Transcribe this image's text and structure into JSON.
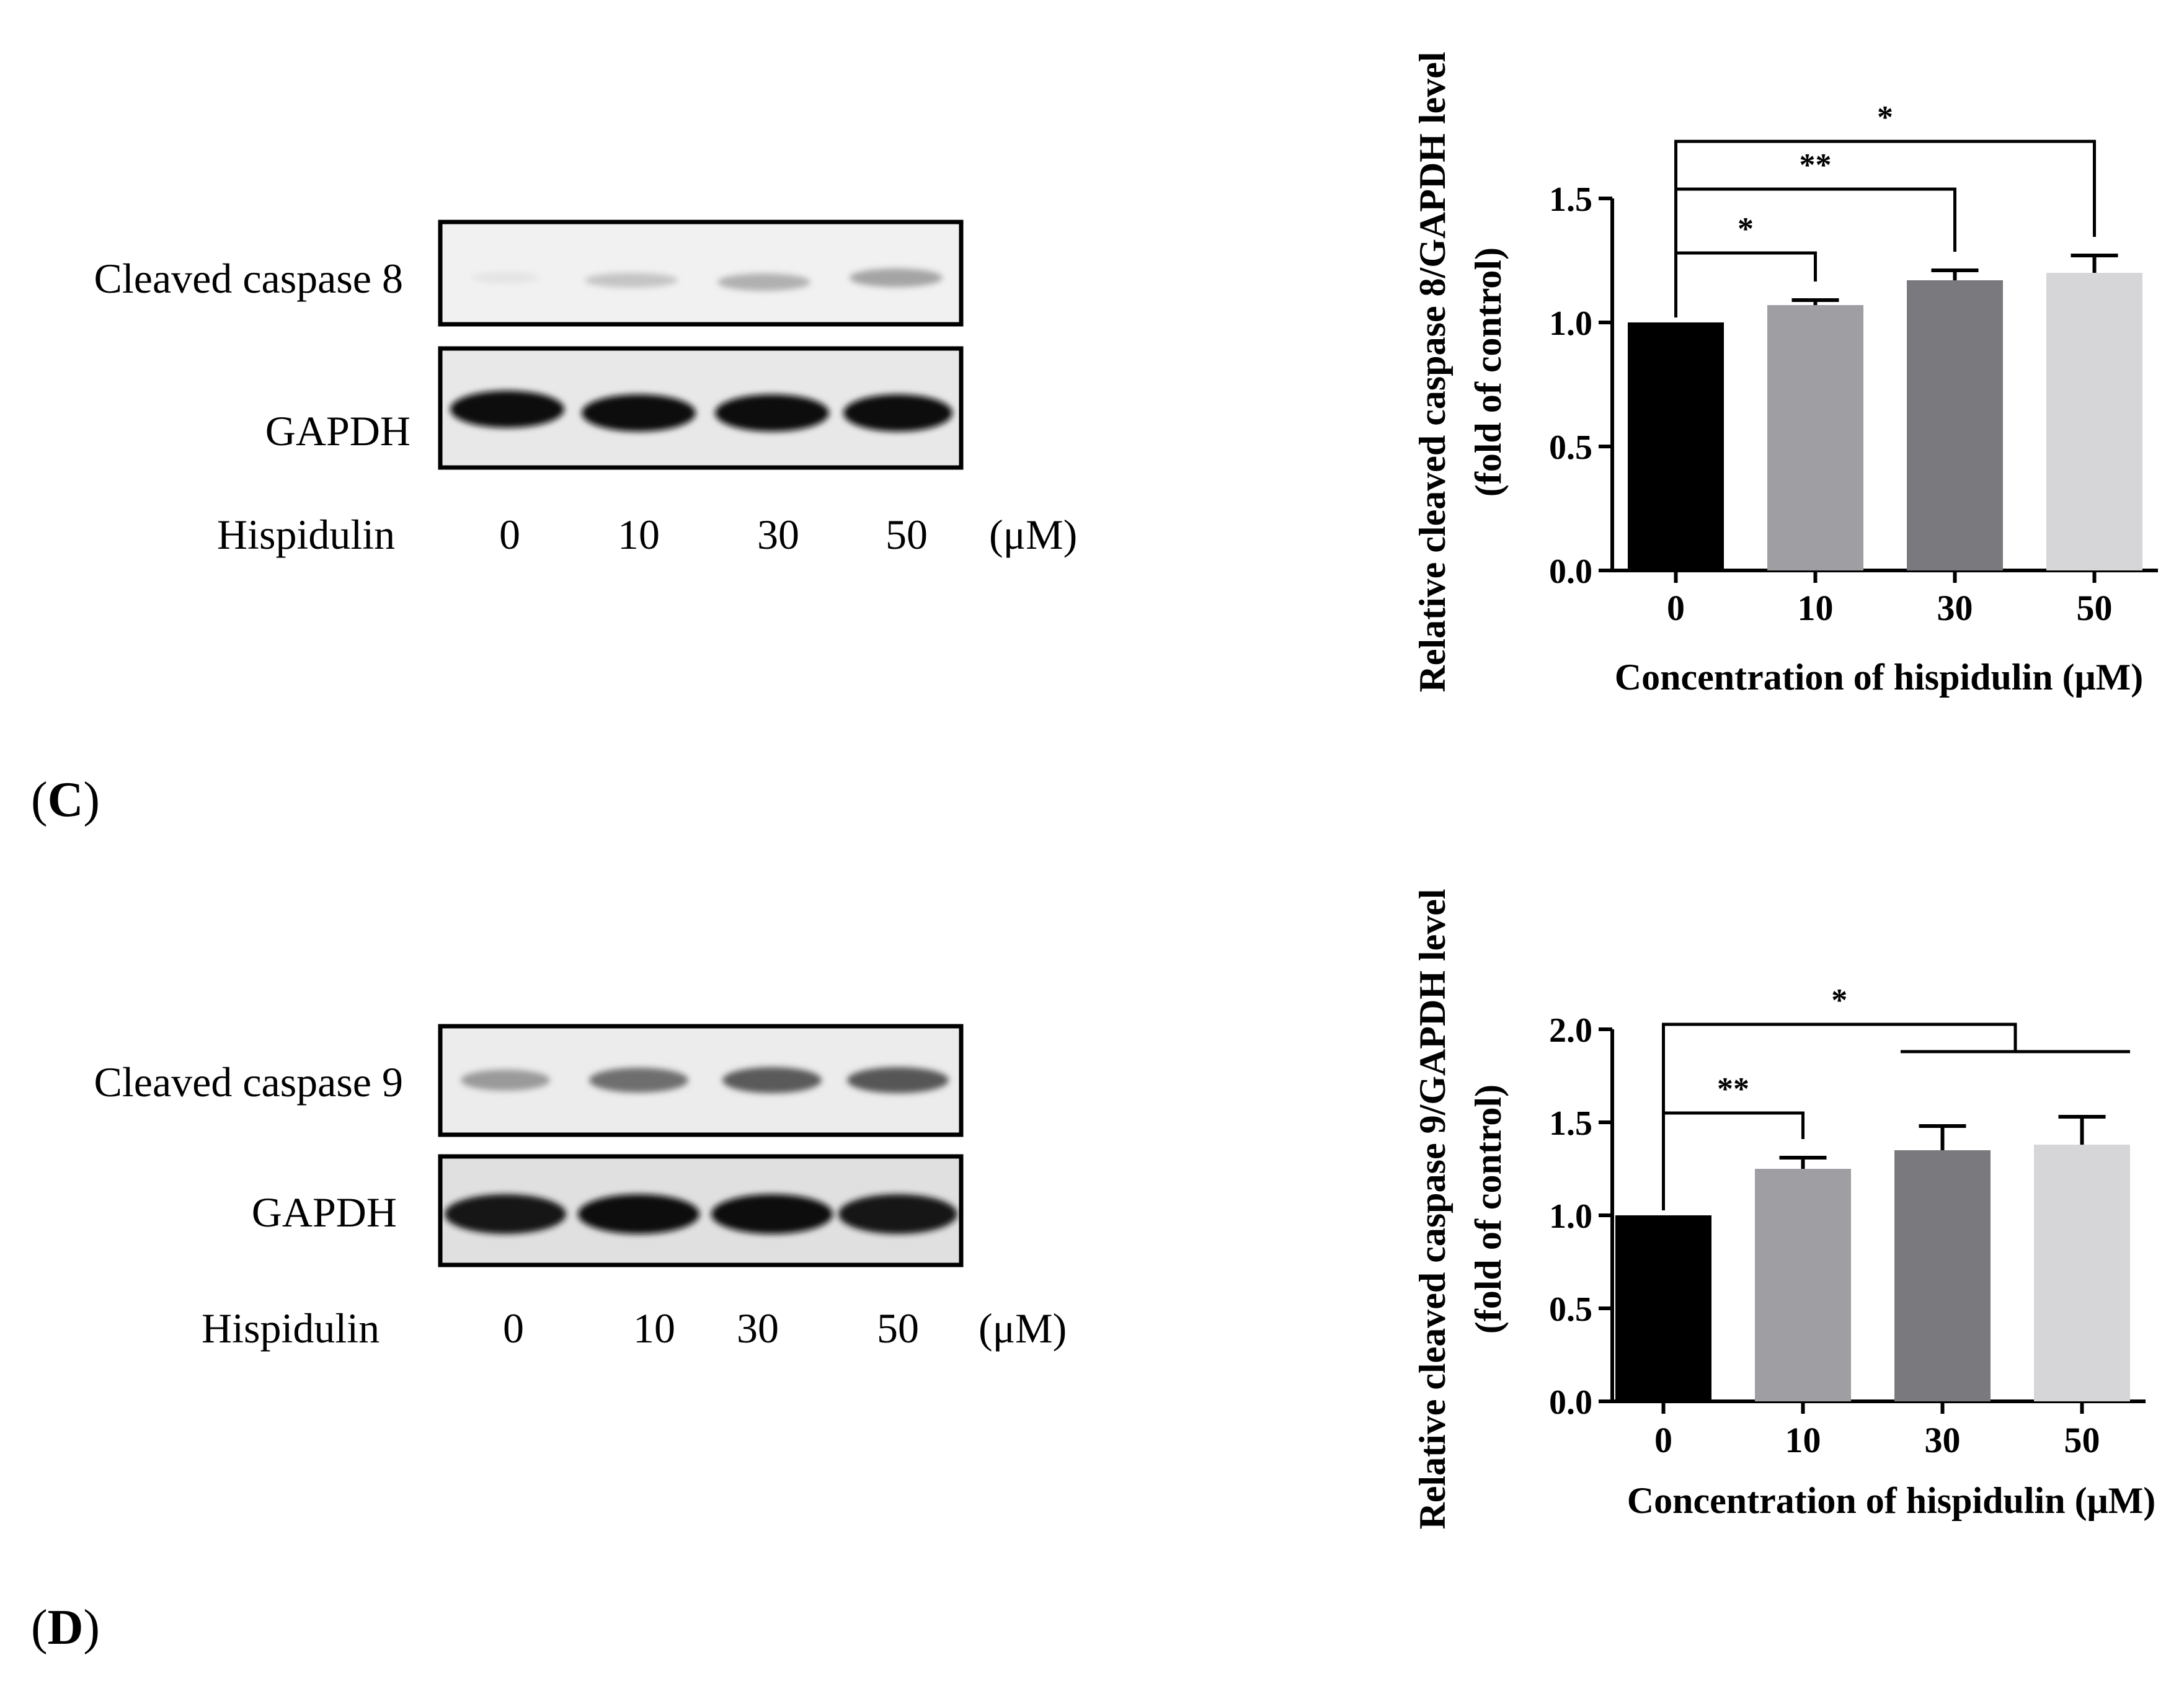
{
  "panels": [
    {
      "label_letter": "C",
      "blot": {
        "rows": [
          "Cleaved caspase 8",
          "GAPDH"
        ],
        "treatment_label": "Hispidulin",
        "doses": [
          "0",
          "10",
          "30",
          "50"
        ],
        "unit": "(μM)"
      }
    },
    {
      "label_letter": "D",
      "blot": {
        "rows": [
          "Cleaved caspase 9",
          "GAPDH"
        ],
        "treatment_label": "Hispidulin",
        "doses": [
          "0",
          "10",
          "30",
          "50"
        ],
        "unit": "(μM)"
      }
    }
  ],
  "chart_data": [
    {
      "type": "bar",
      "categories": [
        "0",
        "10",
        "30",
        "50"
      ],
      "values": [
        1.0,
        1.07,
        1.17,
        1.2
      ],
      "errors": [
        0,
        0.02,
        0.04,
        0.07
      ],
      "colors": [
        "#000000",
        "#9e9ea3",
        "#7a7a7e",
        "#d6d6d8"
      ],
      "ylabel_line1": "Relative cleaved caspase 8/GAPDH level",
      "ylabel_line2": "(fold of control)",
      "xlabel": "Concentration of hispidulin (μM)",
      "ylim": [
        0,
        1.5
      ],
      "yticks": [
        "0.0",
        "0.5",
        "1.0",
        "1.5"
      ],
      "significance": [
        {
          "from": "0",
          "to": "10",
          "label": "*"
        },
        {
          "from": "0",
          "to": "30",
          "label": "**"
        },
        {
          "from": "0",
          "to": "50",
          "label": "*"
        }
      ]
    },
    {
      "type": "bar",
      "categories": [
        "0",
        "10",
        "30",
        "50"
      ],
      "values": [
        1.0,
        1.25,
        1.35,
        1.38
      ],
      "errors": [
        0,
        0.06,
        0.13,
        0.15
      ],
      "colors": [
        "#000000",
        "#9e9ea3",
        "#7a7a7e",
        "#d6d6d8"
      ],
      "ylabel_line1": "Relative cleaved caspase 9/GAPDH level",
      "ylabel_line2": "(fold of control)",
      "xlabel": "Concentration of hispidulin (μM)",
      "ylim": [
        0,
        2.0
      ],
      "yticks": [
        "0.0",
        "0.5",
        "1.0",
        "1.5",
        "2.0"
      ],
      "significance": [
        {
          "from": "0",
          "to": "10",
          "label": "**"
        },
        {
          "from": "0",
          "to": "30,50",
          "label": "*"
        }
      ]
    }
  ]
}
